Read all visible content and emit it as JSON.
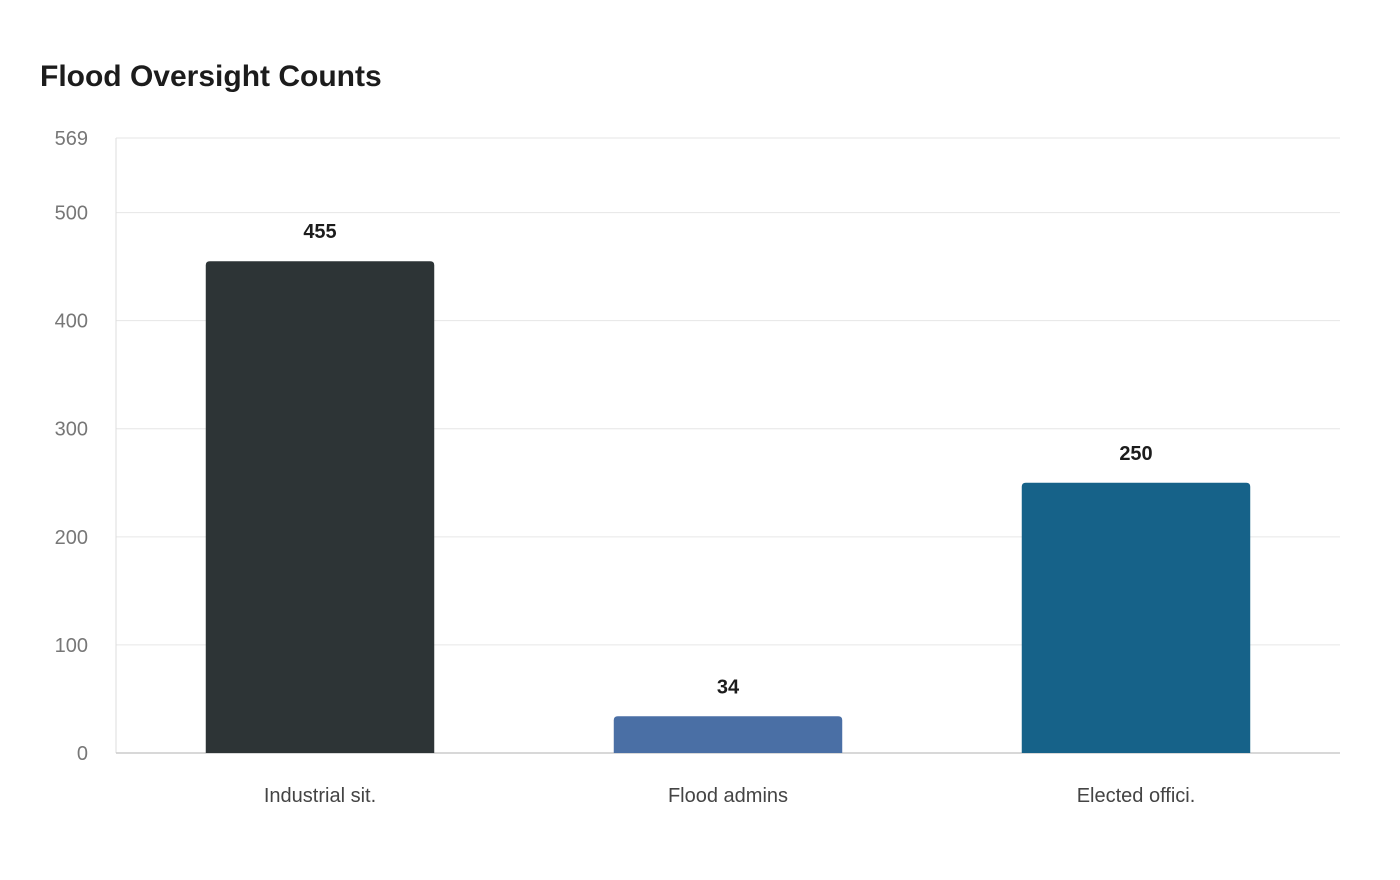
{
  "chart_data": {
    "type": "bar",
    "title": "Flood Oversight Counts",
    "xlabel": "",
    "ylabel": "",
    "categories": [
      "Industrial sit.",
      "Flood admins",
      "Elected offici."
    ],
    "values": [
      455,
      34,
      250
    ],
    "value_labels": [
      "455",
      "34",
      "250"
    ],
    "colors": [
      "#2d3436",
      "#4a6fa5",
      "#166289"
    ],
    "ylim": [
      0,
      569
    ],
    "yticks": [
      0,
      100,
      200,
      300,
      400,
      500,
      569
    ],
    "ytick_labels": [
      "0",
      "100",
      "200",
      "300",
      "400",
      "500",
      "569"
    ],
    "grid": true,
    "legend": "none"
  }
}
